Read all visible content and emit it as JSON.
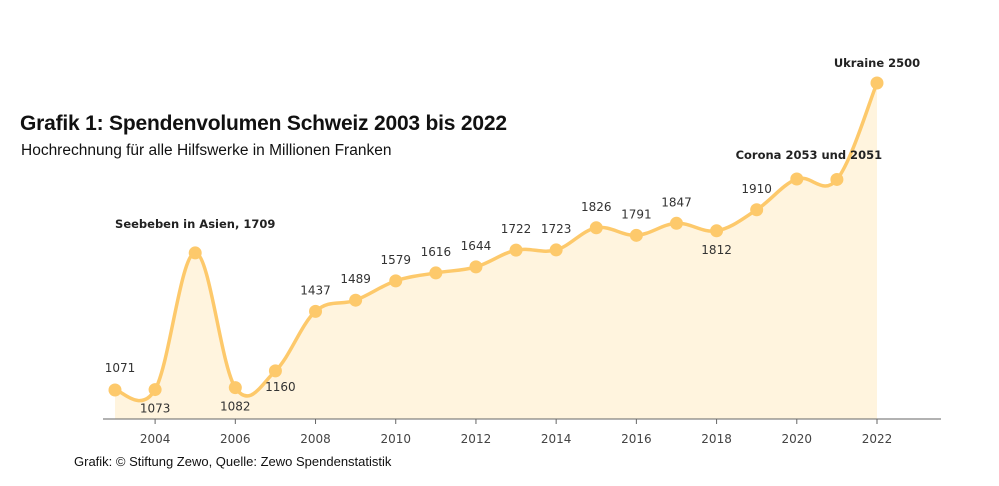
{
  "header": {
    "title": "Grafik 1: Spendenvolumen Schweiz 2003 bis 2022",
    "subtitle": "Hochrechnung für alle Hilfswerke in Millionen Franken"
  },
  "footer": {
    "source": "Grafik: © Stiftung Zewo, Quelle: Zewo Spendenstatistik"
  },
  "colors": {
    "line": "#fdc96b",
    "fill": "#fff4de",
    "axis": "#666666"
  },
  "chart_data": {
    "type": "area",
    "title": "Grafik 1: Spendenvolumen Schweiz 2003 bis 2022",
    "subtitle": "Hochrechnung für alle Hilfswerke in Millionen Franken",
    "xlabel": "",
    "ylabel": "Millionen Franken",
    "x": [
      2003,
      2004,
      2005,
      2006,
      2007,
      2008,
      2009,
      2010,
      2011,
      2012,
      2013,
      2014,
      2015,
      2016,
      2017,
      2018,
      2019,
      2020,
      2021,
      2022
    ],
    "values": [
      1071,
      1073,
      1709,
      1082,
      1160,
      1437,
      1489,
      1579,
      1616,
      1644,
      1722,
      1723,
      1826,
      1791,
      1847,
      1812,
      1910,
      2053,
      2051,
      2500
    ],
    "point_labels": [
      "1071",
      "1073",
      "",
      "1082",
      "1160",
      "1437",
      "1489",
      "1579",
      "1616",
      "1644",
      "1722",
      "1723",
      "1826",
      "1791",
      "1847",
      "1812",
      "1910",
      "",
      "",
      ""
    ],
    "label_position": [
      "above",
      "below",
      "none",
      "below",
      "below-right",
      "above",
      "above",
      "above",
      "above",
      "above",
      "above",
      "above",
      "above",
      "above",
      "above",
      "below",
      "above",
      "none",
      "none",
      "none"
    ],
    "x_ticks": [
      2004,
      2006,
      2008,
      2010,
      2012,
      2014,
      2016,
      2018,
      2020,
      2022
    ],
    "x_tick_labels": [
      "2004",
      "2006",
      "2008",
      "2010",
      "2012",
      "2014",
      "2016",
      "2018",
      "2020",
      "2022"
    ],
    "xlim": [
      2002.75,
      2024.5
    ],
    "ylim": [
      950,
      2500
    ],
    "grid": false,
    "legend": "none",
    "annotations": [
      {
        "text": "Seebeben in Asien, 1709",
        "x": 2005,
        "value": 1709
      },
      {
        "text": "Corona 2053 und 2051",
        "x": 2020.5,
        "value": 2053
      },
      {
        "text": "Ukraine 2500",
        "x": 2022,
        "value": 2500
      }
    ]
  }
}
